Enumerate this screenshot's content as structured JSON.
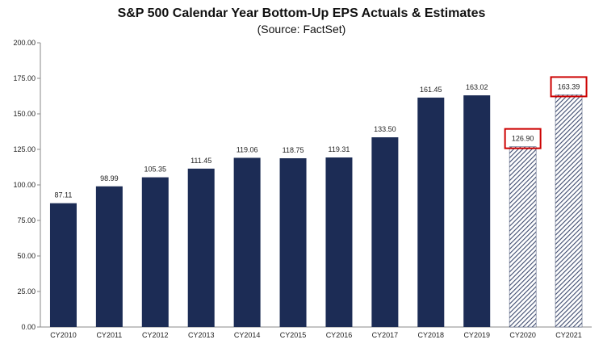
{
  "chart_data": {
    "type": "bar",
    "title": "S&P 500 Calendar Year Bottom-Up EPS Actuals & Estimates",
    "subtitle": "(Source: FactSet)",
    "categories": [
      "CY2010",
      "CY2011",
      "CY2012",
      "CY2013",
      "CY2014",
      "CY2015",
      "CY2016",
      "CY2017",
      "CY2018",
      "CY2019",
      "CY2020",
      "CY2021"
    ],
    "values": [
      87.11,
      98.99,
      105.35,
      111.45,
      119.06,
      118.75,
      119.31,
      133.5,
      161.45,
      163.02,
      126.9,
      163.39
    ],
    "value_labels": [
      "87.11",
      "98.99",
      "105.35",
      "111.45",
      "119.06",
      "118.75",
      "119.31",
      "133.50",
      "161.45",
      "163.02",
      "126.90",
      "163.39"
    ],
    "estimate_flags": [
      false,
      false,
      false,
      false,
      false,
      false,
      false,
      false,
      false,
      false,
      true,
      true
    ],
    "highlighted_flags": [
      false,
      false,
      false,
      false,
      false,
      false,
      false,
      false,
      false,
      false,
      true,
      true
    ],
    "ylim": [
      0,
      200
    ],
    "yticks": [
      "0.00",
      "25.00",
      "50.00",
      "75.00",
      "100.00",
      "125.00",
      "150.00",
      "175.00",
      "200.00"
    ],
    "grid": false,
    "legend": "none",
    "colors": {
      "bar": "#1c2c55",
      "hatch": "#3d4a6e",
      "highlight_box": "#cc0000",
      "axis": "#888888"
    }
  }
}
